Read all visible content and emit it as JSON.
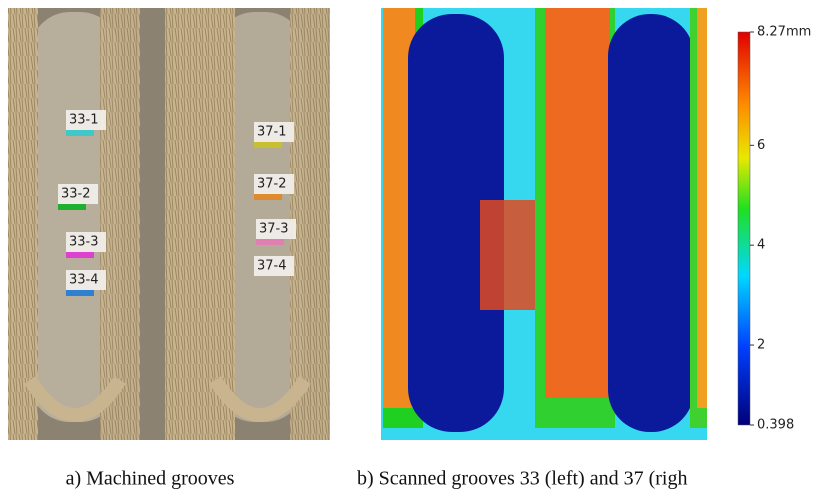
{
  "panel_a": {
    "caption": "a) Machined grooves",
    "labels": [
      "33-1",
      "33-2",
      "33-3",
      "33-4",
      "37-1",
      "37-2",
      "37-3",
      "37-4"
    ]
  },
  "panel_b": {
    "caption": "b) Scanned grooves 33 (left) and 37 (righ",
    "colorbar": {
      "lim": [
        0.398,
        8.27
      ],
      "ticks": [
        {
          "value": 8.27,
          "label": "8.27mm"
        },
        6,
        4,
        2,
        0.398
      ]
    }
  }
}
